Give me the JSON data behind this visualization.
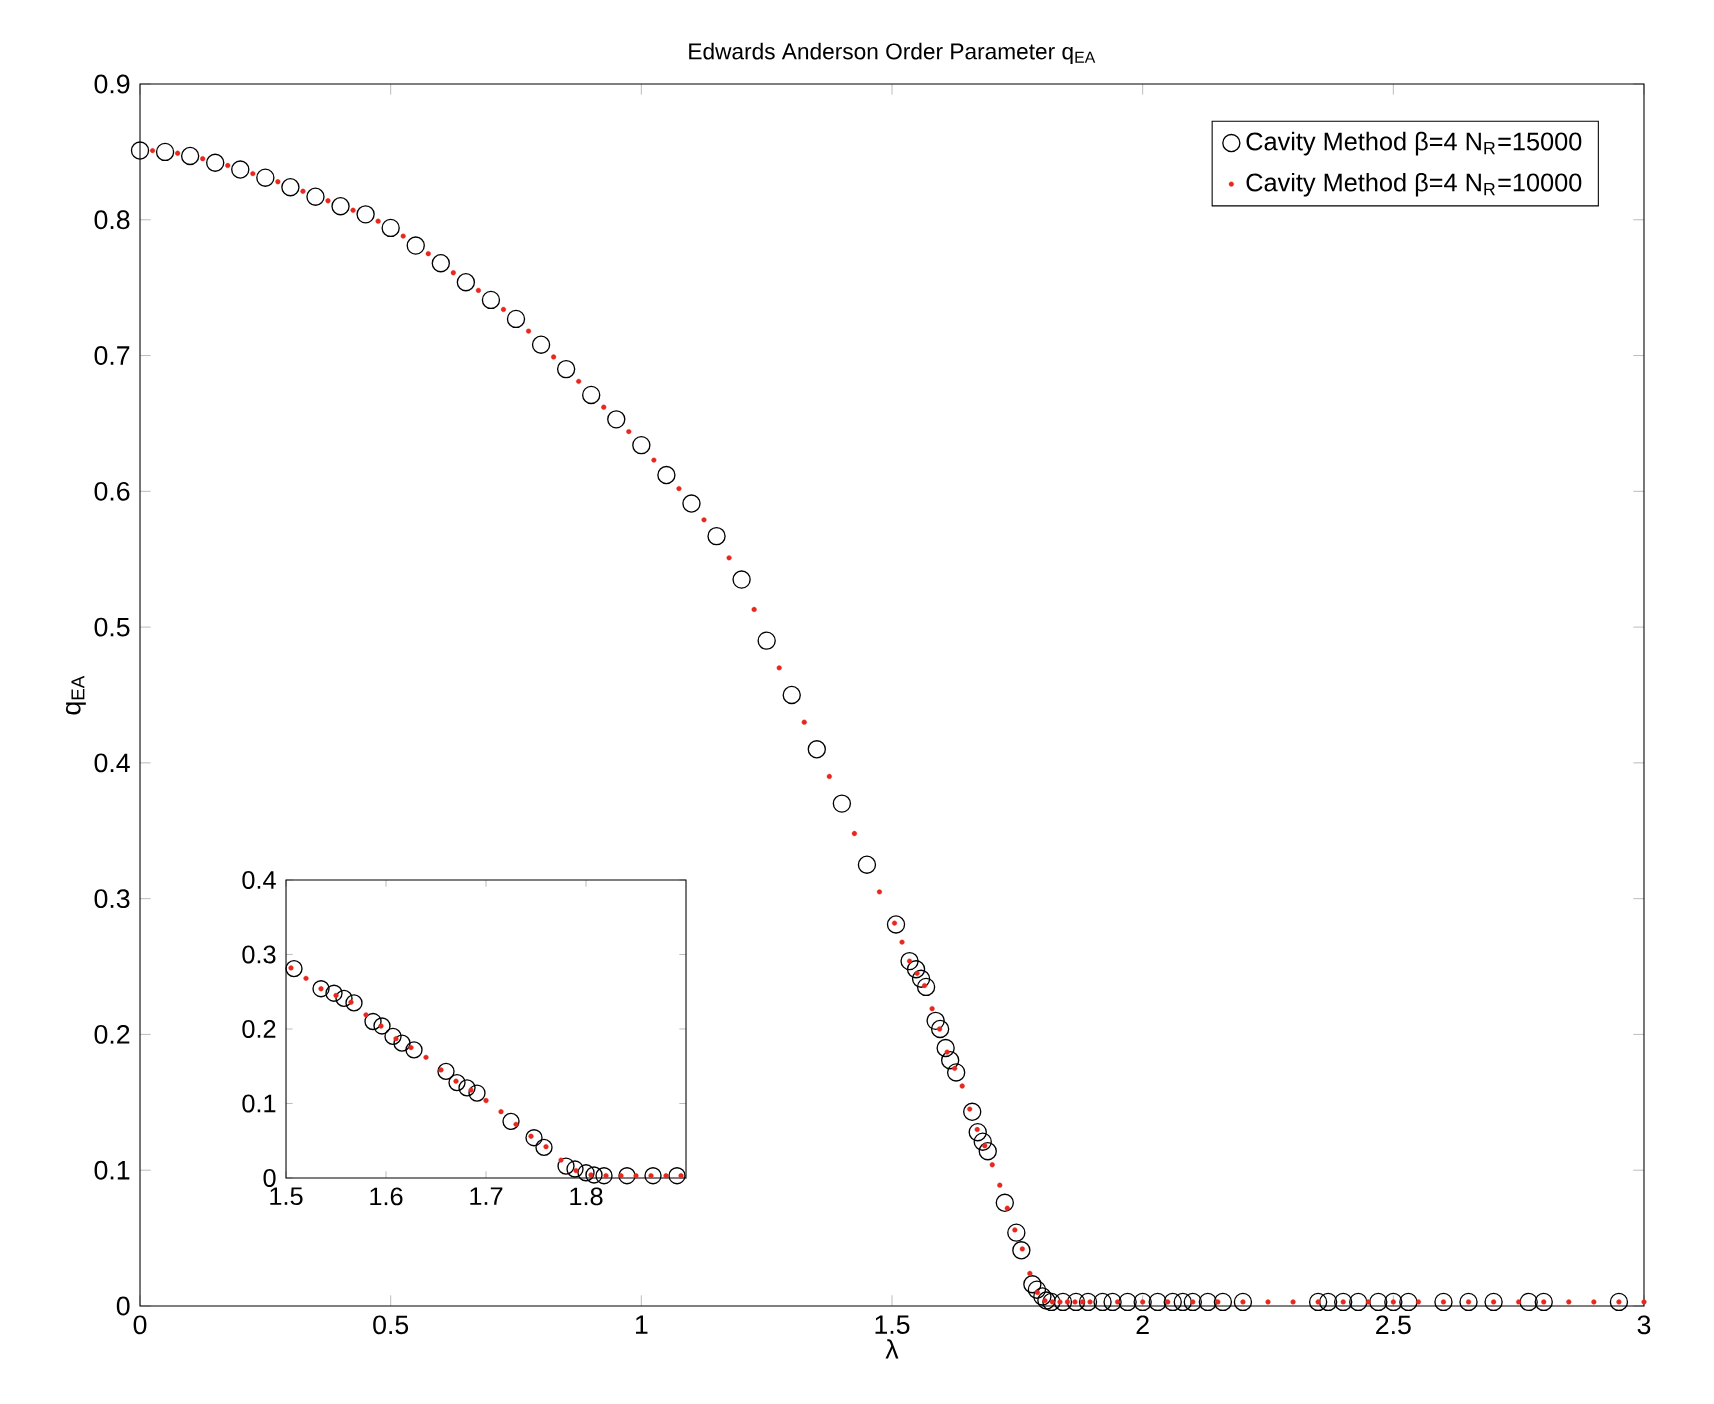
{
  "chart_data": [
    {
      "type": "scatter",
      "title": "Edwards Anderson Order Parameter q$_{EA}$",
      "xlabel": "λ",
      "ylabel": "q$_{EA}$",
      "xlim": [
        0,
        3
      ],
      "ylim": [
        0,
        0.9
      ],
      "xticks": [
        0,
        0.5,
        1,
        1.5,
        2,
        2.5,
        3
      ],
      "yticks": [
        0,
        0.1,
        0.2,
        0.3,
        0.4,
        0.5,
        0.6,
        0.7,
        0.8,
        0.9
      ],
      "legend": "top right",
      "marker": "circle",
      "grid": false,
      "series": [
        {
          "name": "Cavity Method β=4 N$_{R}$=15000",
          "color": "#000000",
          "x": [
            0,
            0.05,
            0.1,
            0.15,
            0.2,
            0.25,
            0.3,
            0.35,
            0.4,
            0.45,
            0.5,
            0.55,
            0.6,
            0.65,
            0.7,
            0.75,
            0.8,
            0.85,
            0.9,
            0.95,
            1.0,
            1.05,
            1.1,
            1.15,
            1.2,
            1.25,
            1.3,
            1.35,
            1.4,
            1.45,
            1.508,
            1.535,
            1.548,
            1.558,
            1.568,
            1.587,
            1.596,
            1.607,
            1.616,
            1.628,
            1.66,
            1.671,
            1.681,
            1.691,
            1.725,
            1.748,
            1.758,
            1.78,
            1.789,
            1.8,
            1.808,
            1.818,
            1.841,
            1.867,
            1.891,
            1.92,
            1.94,
            1.97,
            2.0,
            2.03,
            2.06,
            2.08,
            2.1,
            2.13,
            2.16,
            2.2,
            2.35,
            2.37,
            2.4,
            2.43,
            2.47,
            2.5,
            2.53,
            2.6,
            2.65,
            2.7,
            2.77,
            2.8,
            2.95
          ],
          "values": [
            0.851,
            0.85,
            0.847,
            0.842,
            0.837,
            0.831,
            0.824,
            0.817,
            0.81,
            0.804,
            0.794,
            0.781,
            0.768,
            0.754,
            0.741,
            0.727,
            0.708,
            0.69,
            0.671,
            0.653,
            0.634,
            0.612,
            0.591,
            0.567,
            0.535,
            0.49,
            0.45,
            0.41,
            0.37,
            0.325,
            0.281,
            0.254,
            0.248,
            0.241,
            0.235,
            0.21,
            0.204,
            0.19,
            0.181,
            0.172,
            0.143,
            0.128,
            0.121,
            0.114,
            0.076,
            0.054,
            0.041,
            0.016,
            0.012,
            0.007,
            0.004,
            0.003,
            0.003,
            0.003,
            0.003,
            0.003,
            0.003,
            0.003,
            0.003,
            0.003,
            0.003,
            0.003,
            0.003,
            0.003,
            0.003,
            0.003,
            0.003,
            0.003,
            0.003,
            0.003,
            0.003,
            0.003,
            0.003,
            0.003,
            0.003,
            0.003,
            0.003,
            0.003,
            0.003
          ]
        },
        {
          "name": "Cavity Method β=4 N$_{R}$=10000",
          "color": "#e8281e",
          "x": [
            0.025,
            0.075,
            0.125,
            0.175,
            0.225,
            0.275,
            0.325,
            0.375,
            0.425,
            0.475,
            0.525,
            0.575,
            0.625,
            0.675,
            0.725,
            0.775,
            0.825,
            0.875,
            0.925,
            0.975,
            1.025,
            1.075,
            1.125,
            1.175,
            1.225,
            1.275,
            1.325,
            1.375,
            1.425,
            1.475,
            1.505,
            1.52,
            1.535,
            1.55,
            1.565,
            1.58,
            1.595,
            1.61,
            1.625,
            1.64,
            1.655,
            1.67,
            1.685,
            1.7,
            1.715,
            1.73,
            1.745,
            1.76,
            1.775,
            1.79,
            1.805,
            1.82,
            1.835,
            1.85,
            1.865,
            1.88,
            1.895,
            1.95,
            2.0,
            2.05,
            2.1,
            2.15,
            2.2,
            2.25,
            2.3,
            2.35,
            2.4,
            2.45,
            2.5,
            2.55,
            2.6,
            2.65,
            2.7,
            2.75,
            2.8,
            2.85,
            2.9,
            2.95,
            3.0
          ],
          "values": [
            0.851,
            0.849,
            0.845,
            0.84,
            0.834,
            0.828,
            0.821,
            0.814,
            0.807,
            0.799,
            0.788,
            0.775,
            0.761,
            0.748,
            0.734,
            0.718,
            0.699,
            0.681,
            0.662,
            0.644,
            0.623,
            0.602,
            0.579,
            0.551,
            0.513,
            0.47,
            0.43,
            0.39,
            0.348,
            0.305,
            0.282,
            0.268,
            0.254,
            0.245,
            0.236,
            0.219,
            0.204,
            0.187,
            0.175,
            0.162,
            0.145,
            0.13,
            0.118,
            0.104,
            0.089,
            0.072,
            0.056,
            0.042,
            0.024,
            0.01,
            0.004,
            0.003,
            0.003,
            0.003,
            0.003,
            0.003,
            0.003,
            0.003,
            0.003,
            0.003,
            0.003,
            0.003,
            0.003,
            0.003,
            0.003,
            0.003,
            0.003,
            0.003,
            0.003,
            0.003,
            0.003,
            0.003,
            0.003,
            0.003,
            0.003,
            0.003,
            0.003,
            0.003,
            0.003
          ]
        }
      ]
    },
    {
      "type": "scatter",
      "xlim": [
        1.5,
        1.9
      ],
      "ylim": [
        0,
        0.4
      ],
      "xticks": [
        1.5,
        1.6,
        1.7,
        1.8
      ],
      "yticks": [
        0,
        0.1,
        0.2,
        0.3,
        0.4
      ],
      "marker": "circle",
      "grid": false,
      "series": [
        {
          "color": "#000000",
          "x": [
            1.508,
            1.535,
            1.548,
            1.558,
            1.568,
            1.587,
            1.596,
            1.607,
            1.616,
            1.628,
            1.66,
            1.671,
            1.681,
            1.691,
            1.725,
            1.748,
            1.758,
            1.78,
            1.789,
            1.8,
            1.808,
            1.818,
            1.841,
            1.867,
            1.891
          ],
          "values": [
            0.281,
            0.254,
            0.248,
            0.241,
            0.235,
            0.21,
            0.204,
            0.19,
            0.181,
            0.172,
            0.143,
            0.128,
            0.121,
            0.114,
            0.076,
            0.054,
            0.041,
            0.016,
            0.012,
            0.007,
            0.004,
            0.003,
            0.003,
            0.003,
            0.003
          ]
        },
        {
          "color": "#e8281e",
          "x": [
            1.505,
            1.52,
            1.535,
            1.55,
            1.565,
            1.58,
            1.595,
            1.61,
            1.625,
            1.64,
            1.655,
            1.67,
            1.685,
            1.7,
            1.715,
            1.73,
            1.745,
            1.76,
            1.775,
            1.79,
            1.805,
            1.82,
            1.835,
            1.85,
            1.865,
            1.88,
            1.895
          ],
          "values": [
            0.282,
            0.268,
            0.254,
            0.245,
            0.236,
            0.219,
            0.204,
            0.187,
            0.175,
            0.162,
            0.145,
            0.13,
            0.118,
            0.104,
            0.089,
            0.072,
            0.056,
            0.042,
            0.024,
            0.01,
            0.004,
            0.003,
            0.003,
            0.003,
            0.003,
            0.003,
            0.003
          ]
        }
      ]
    }
  ]
}
